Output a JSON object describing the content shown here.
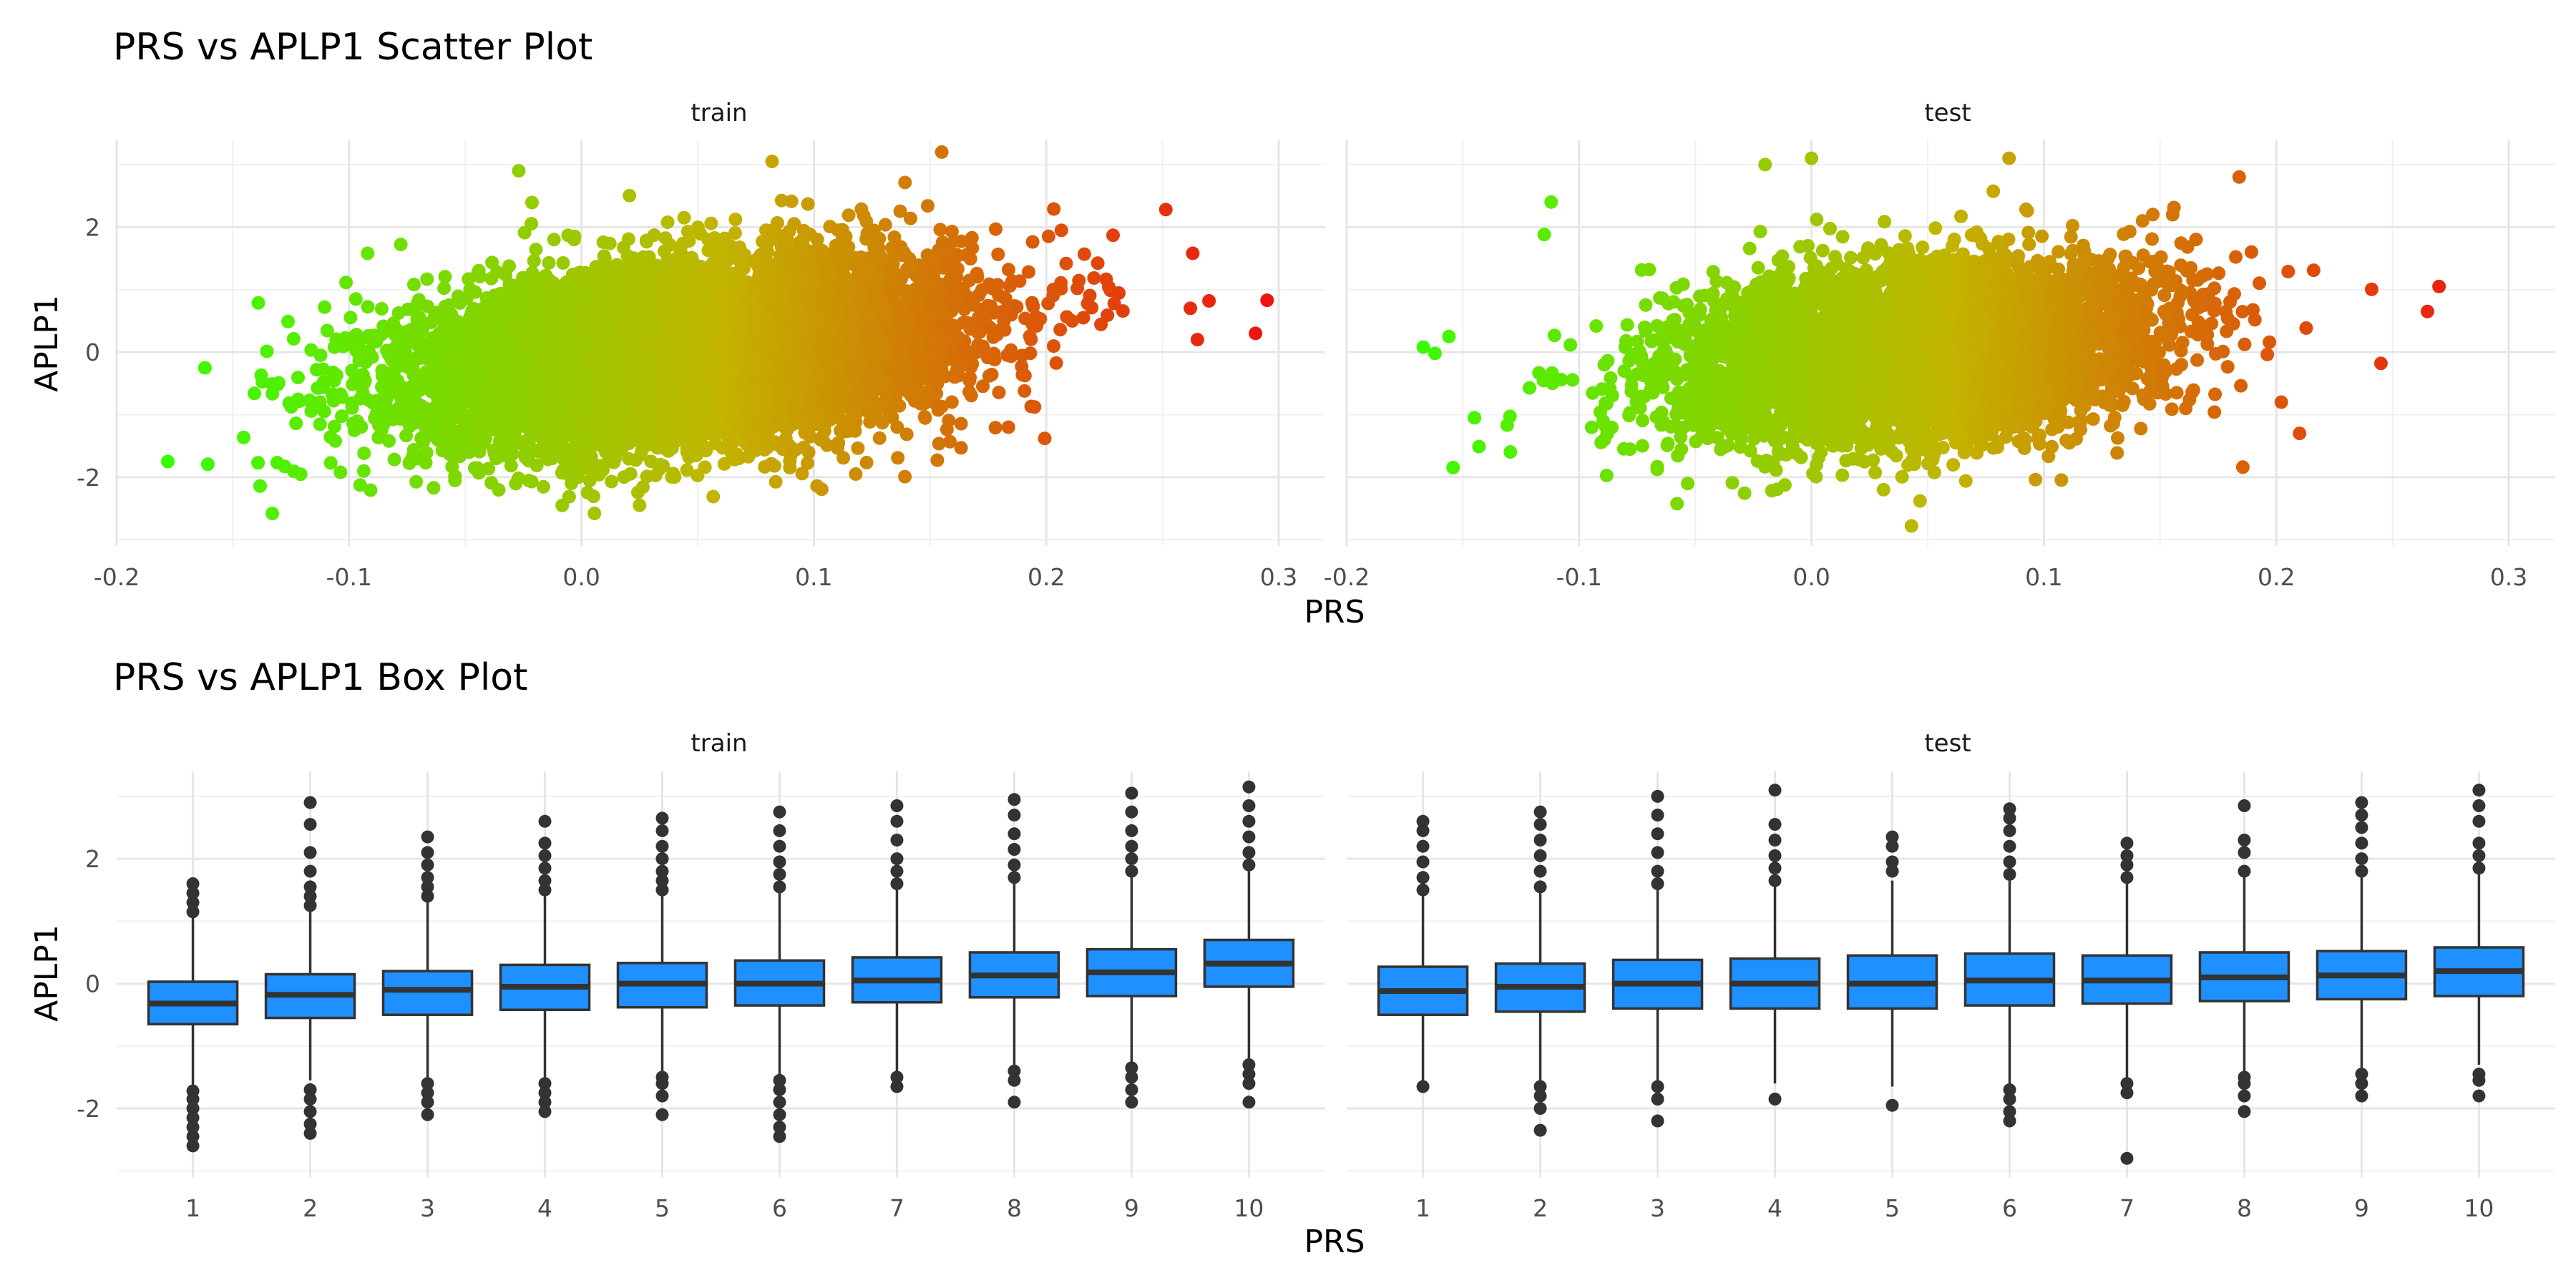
{
  "chart_data": [
    {
      "type": "scatter",
      "title": "PRS vs APLP1 Scatter Plot",
      "xlabel": "PRS",
      "ylabel": "APLP1",
      "panels": [
        "train",
        "test"
      ],
      "xlim": [
        -0.2,
        0.32
      ],
      "ylim": [
        -3.1,
        3.4
      ],
      "x_ticks": [
        "-0.2",
        "-0.1",
        "0.0",
        "0.1",
        "0.2",
        "0.3"
      ],
      "y_ticks": [
        "-2",
        "0",
        "2"
      ],
      "color_scale": {
        "low": "#33ff00",
        "mid": "#c2b400",
        "high": "#ee1111",
        "mapped_to": "PRS"
      },
      "grid": true,
      "summary": {
        "train": {
          "n_points_approx": 25000,
          "x_range": [
            -0.18,
            0.3
          ],
          "y_range": [
            -2.6,
            3.2
          ],
          "correlation_approx": 0.3
        },
        "test": {
          "n_points_approx": 10000,
          "x_range": [
            -0.17,
            0.27
          ],
          "y_range": [
            -2.8,
            3.1
          ],
          "correlation_approx": 0.25
        }
      },
      "extremes": {
        "train": [
          {
            "x": -0.178,
            "y": -1.75
          },
          {
            "x": -0.133,
            "y": -2.58
          },
          {
            "x": 0.155,
            "y": 3.2
          },
          {
            "x": 0.295,
            "y": 0.83
          },
          {
            "x": 0.29,
            "y": 0.3
          },
          {
            "x": 0.27,
            "y": 0.82
          },
          {
            "x": 0.263,
            "y": 1.58
          },
          {
            "x": 0.262,
            "y": 0.7
          },
          {
            "x": 0.265,
            "y": 0.2
          },
          {
            "x": -0.092,
            "y": 1.58
          },
          {
            "x": -0.027,
            "y": 2.9
          },
          {
            "x": 0.082,
            "y": 3.05
          },
          {
            "x": 0.118,
            "y": -1.95
          },
          {
            "x": 0.025,
            "y": -2.45
          },
          {
            "x": -0.162,
            "y": -0.25
          }
        ],
        "test": [
          {
            "x": -0.167,
            "y": 0.08
          },
          {
            "x": -0.162,
            "y": -0.02
          },
          {
            "x": -0.156,
            "y": 0.25
          },
          {
            "x": -0.145,
            "y": -1.05
          },
          {
            "x": -0.115,
            "y": 1.88
          },
          {
            "x": -0.112,
            "y": 2.4
          },
          {
            "x": -0.02,
            "y": 3.0
          },
          {
            "x": 0.0,
            "y": 3.1
          },
          {
            "x": 0.085,
            "y": 3.1
          },
          {
            "x": 0.184,
            "y": 2.8
          },
          {
            "x": 0.27,
            "y": 1.05
          },
          {
            "x": 0.265,
            "y": 0.65
          },
          {
            "x": 0.245,
            "y": -0.18
          },
          {
            "x": 0.21,
            "y": -1.3
          },
          {
            "x": 0.043,
            "y": -2.78
          },
          {
            "x": 0.031,
            "y": -2.2
          }
        ]
      }
    },
    {
      "type": "box",
      "title": "PRS vs APLP1 Box Plot",
      "xlabel": "PRS",
      "ylabel": "APLP1",
      "panels": [
        "train",
        "test"
      ],
      "categories": [
        "1",
        "2",
        "3",
        "4",
        "5",
        "6",
        "7",
        "8",
        "9",
        "10"
      ],
      "ylim": [
        -3.1,
        3.4
      ],
      "y_ticks": [
        "-2",
        "0",
        "2"
      ],
      "box_color": "#1e90ff",
      "grid": true,
      "series": {
        "train": [
          {
            "q1": -0.65,
            "median": -0.32,
            "q3": 0.03,
            "lower": -1.65,
            "upper": 1.05,
            "outliers": [
              -2.6,
              -2.45,
              -2.3,
              -2.15,
              -2.0,
              -1.85,
              -1.72,
              1.15,
              1.3,
              1.45,
              1.6
            ]
          },
          {
            "q1": -0.55,
            "median": -0.18,
            "q3": 0.15,
            "lower": -1.55,
            "upper": 1.2,
            "outliers": [
              -2.4,
              -2.25,
              -2.05,
              -1.85,
              -1.7,
              1.25,
              1.4,
              1.55,
              1.8,
              2.1,
              2.55,
              2.9
            ]
          },
          {
            "q1": -0.5,
            "median": -0.1,
            "q3": 0.2,
            "lower": -1.5,
            "upper": 1.3,
            "outliers": [
              -2.1,
              -1.9,
              -1.75,
              -1.6,
              1.4,
              1.55,
              1.7,
              1.9,
              2.1,
              2.35
            ]
          },
          {
            "q1": -0.42,
            "median": -0.05,
            "q3": 0.3,
            "lower": -1.5,
            "upper": 1.4,
            "outliers": [
              -2.05,
              -1.9,
              -1.75,
              -1.6,
              1.5,
              1.65,
              1.85,
              2.05,
              2.25,
              2.6
            ]
          },
          {
            "q1": -0.38,
            "median": 0.0,
            "q3": 0.33,
            "lower": -1.4,
            "upper": 1.4,
            "outliers": [
              -2.1,
              -1.8,
              -1.6,
              -1.5,
              1.5,
              1.65,
              1.8,
              2.0,
              2.2,
              2.45,
              2.65
            ]
          },
          {
            "q1": -0.35,
            "median": 0.0,
            "q3": 0.37,
            "lower": -1.45,
            "upper": 1.45,
            "outliers": [
              -2.45,
              -2.3,
              -2.1,
              -1.9,
              -1.7,
              -1.55,
              1.55,
              1.75,
              1.95,
              2.2,
              2.45,
              2.75
            ]
          },
          {
            "q1": -0.3,
            "median": 0.05,
            "q3": 0.42,
            "lower": -1.4,
            "upper": 1.5,
            "outliers": [
              -1.65,
              -1.5,
              1.6,
              1.8,
              2.0,
              2.3,
              2.6,
              2.85
            ]
          },
          {
            "q1": -0.22,
            "median": 0.13,
            "q3": 0.5,
            "lower": -1.3,
            "upper": 1.6,
            "outliers": [
              -1.9,
              -1.55,
              -1.4,
              1.7,
              1.9,
              2.15,
              2.4,
              2.7,
              2.95
            ]
          },
          {
            "q1": -0.2,
            "median": 0.18,
            "q3": 0.55,
            "lower": -1.3,
            "upper": 1.7,
            "outliers": [
              -1.9,
              -1.7,
              -1.5,
              -1.35,
              1.8,
              2.0,
              2.2,
              2.45,
              2.75,
              3.05
            ]
          },
          {
            "q1": -0.05,
            "median": 0.32,
            "q3": 0.7,
            "lower": -1.2,
            "upper": 1.8,
            "outliers": [
              -1.9,
              -1.6,
              -1.45,
              -1.3,
              1.9,
              2.1,
              2.35,
              2.6,
              2.85,
              3.15
            ]
          }
        ],
        "test": [
          {
            "q1": -0.5,
            "median": -0.12,
            "q3": 0.27,
            "lower": -1.6,
            "upper": 1.4,
            "outliers": [
              -1.65,
              1.5,
              1.7,
              1.95,
              2.2,
              2.45,
              2.6
            ]
          },
          {
            "q1": -0.45,
            "median": -0.05,
            "q3": 0.32,
            "lower": -1.55,
            "upper": 1.45,
            "outliers": [
              -2.35,
              -2.0,
              -1.8,
              -1.65,
              1.55,
              1.8,
              2.05,
              2.3,
              2.55,
              2.75
            ]
          },
          {
            "q1": -0.4,
            "median": 0.0,
            "q3": 0.38,
            "lower": -1.55,
            "upper": 1.5,
            "outliers": [
              -2.2,
              -1.85,
              -1.65,
              1.6,
              1.8,
              2.1,
              2.4,
              2.7,
              3.0
            ]
          },
          {
            "q1": -0.4,
            "median": 0.0,
            "q3": 0.4,
            "lower": -1.6,
            "upper": 1.55,
            "outliers": [
              -1.85,
              1.65,
              1.85,
              2.05,
              2.3,
              2.55,
              3.1
            ]
          },
          {
            "q1": -0.4,
            "median": 0.0,
            "q3": 0.45,
            "lower": -1.65,
            "upper": 1.65,
            "outliers": [
              -1.95,
              1.8,
              1.95,
              2.2,
              2.35
            ]
          },
          {
            "q1": -0.35,
            "median": 0.05,
            "q3": 0.48,
            "lower": -1.6,
            "upper": 1.65,
            "outliers": [
              -2.2,
              -2.05,
              -1.85,
              -1.7,
              1.75,
              1.95,
              2.2,
              2.45,
              2.65,
              2.8
            ]
          },
          {
            "q1": -0.32,
            "median": 0.05,
            "q3": 0.45,
            "lower": -1.55,
            "upper": 1.6,
            "outliers": [
              -2.8,
              -1.75,
              -1.6,
              1.7,
              1.9,
              2.05,
              2.25
            ]
          },
          {
            "q1": -0.28,
            "median": 0.1,
            "q3": 0.5,
            "lower": -1.4,
            "upper": 1.7,
            "outliers": [
              -2.05,
              -1.8,
              -1.6,
              -1.5,
              1.8,
              2.1,
              2.3,
              2.85
            ]
          },
          {
            "q1": -0.25,
            "median": 0.13,
            "q3": 0.52,
            "lower": -1.35,
            "upper": 1.7,
            "outliers": [
              -1.8,
              -1.6,
              -1.45,
              1.8,
              2.0,
              2.25,
              2.5,
              2.7,
              2.9
            ]
          },
          {
            "q1": -0.2,
            "median": 0.2,
            "q3": 0.58,
            "lower": -1.3,
            "upper": 1.75,
            "outliers": [
              -1.8,
              -1.55,
              -1.45,
              1.85,
              2.05,
              2.25,
              2.6,
              2.85,
              3.1
            ]
          }
        ]
      }
    }
  ]
}
